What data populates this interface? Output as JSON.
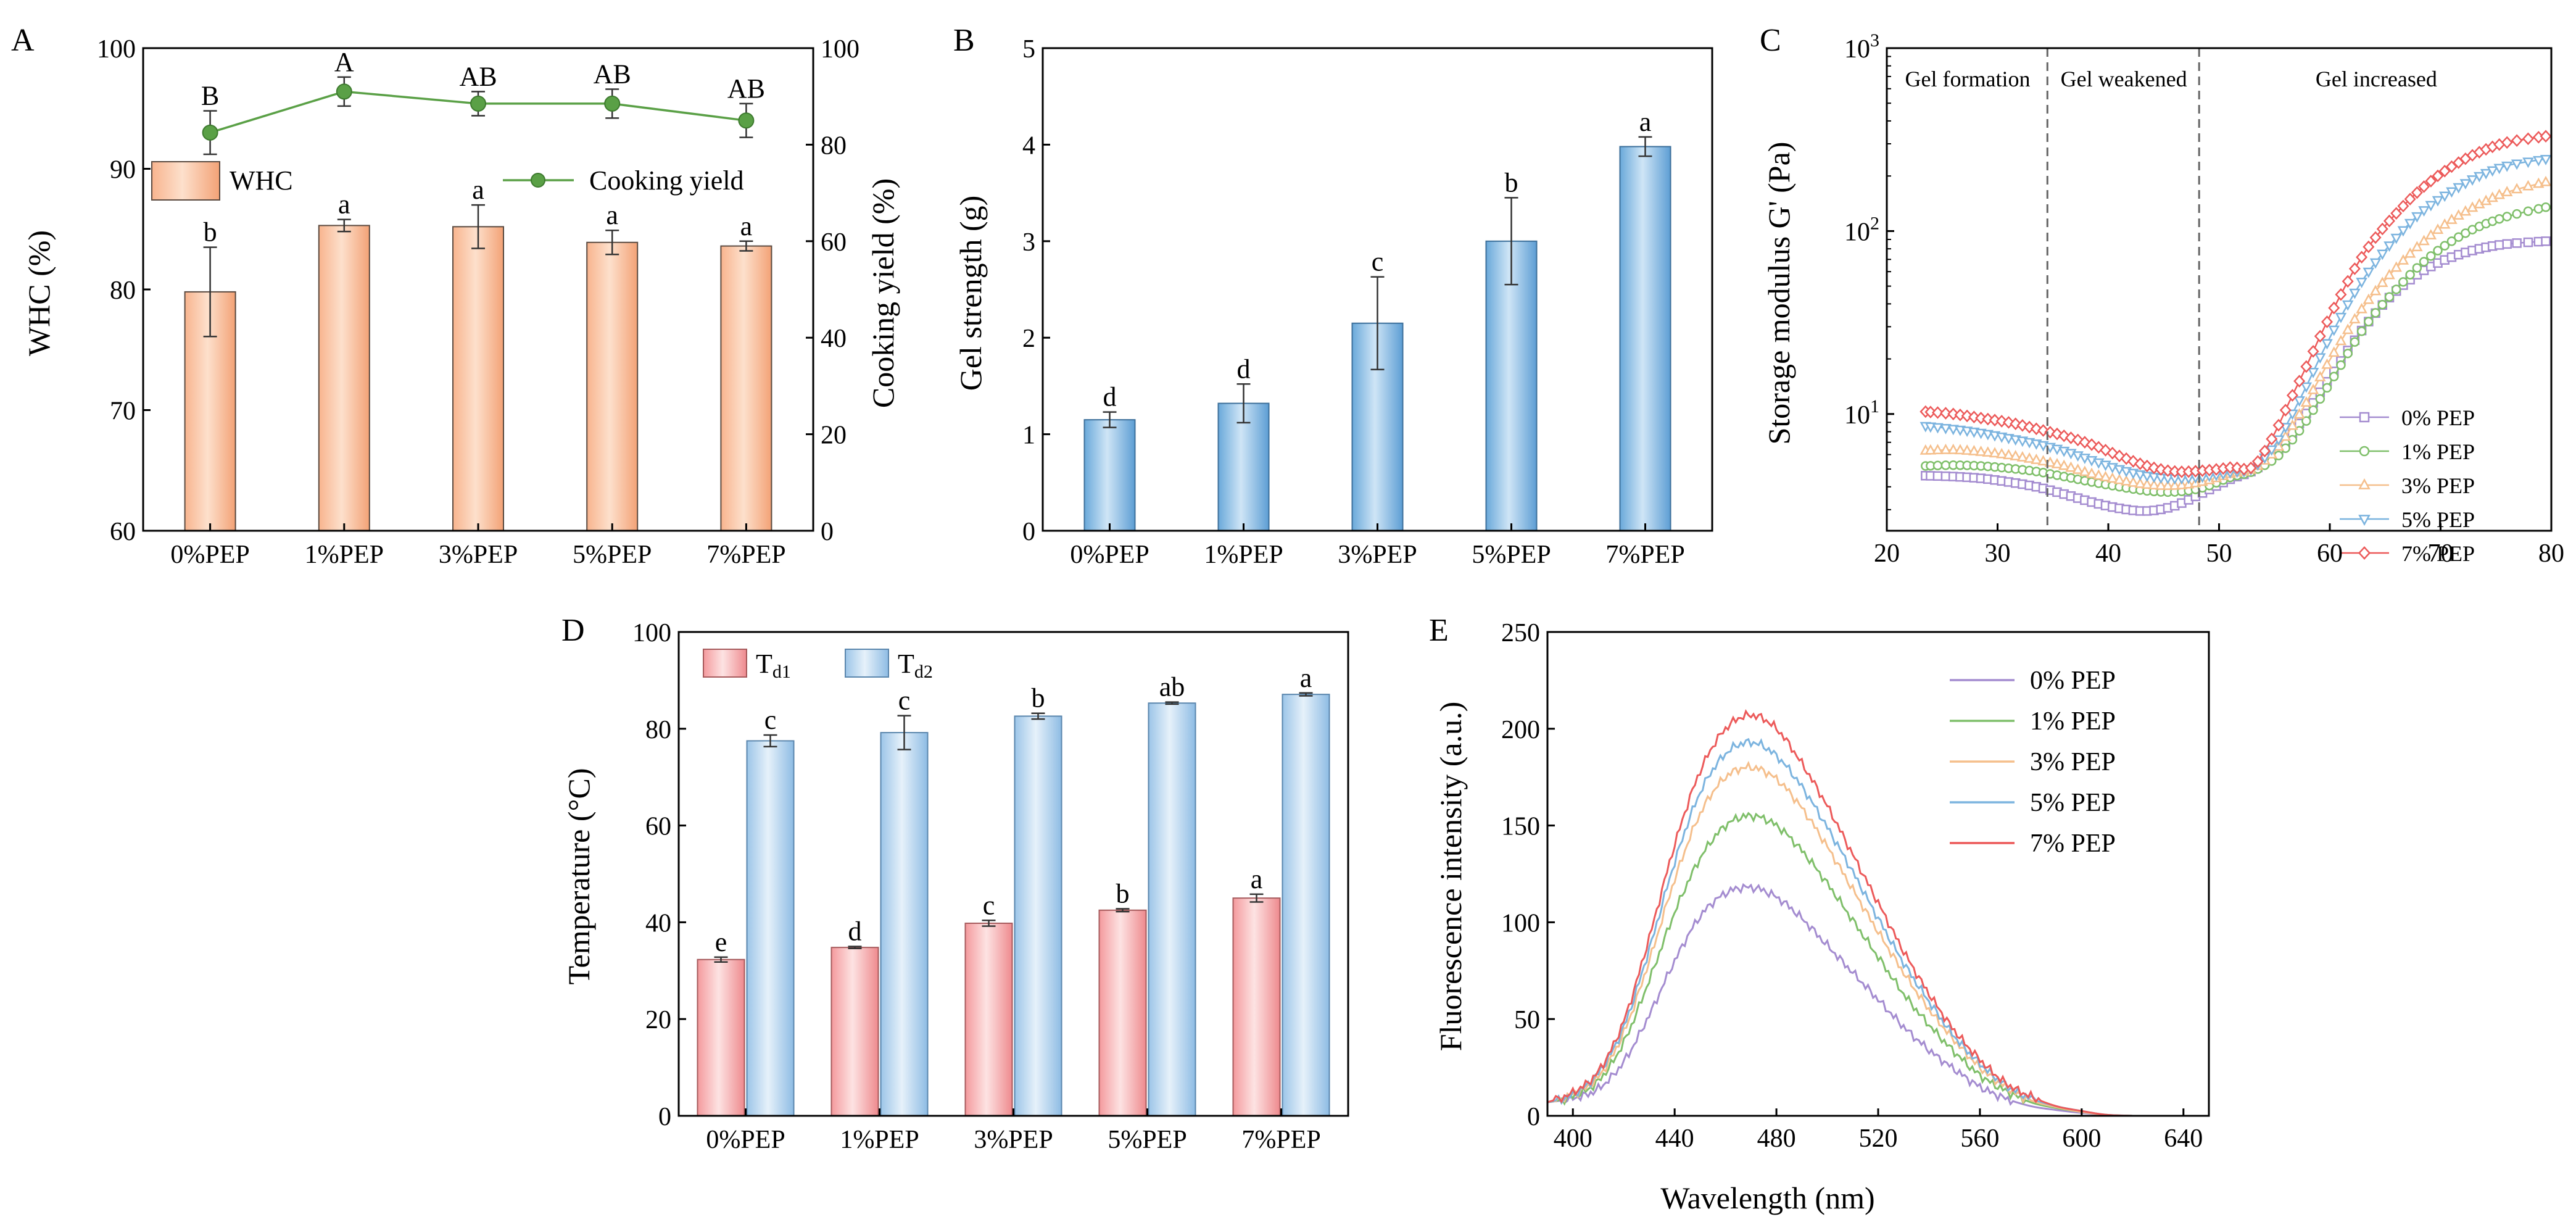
{
  "colors": {
    "whc_bar": "#f8b48e",
    "whc_stroke": "#5a4a40",
    "cook_line": "#5aa046",
    "gel_bar": "#7fb5e0",
    "td1_bar": "#f4a4a6",
    "td2_bar": "#a9cceb",
    "pep0": "#a48cd0",
    "pep1": "#7fbf6a",
    "pep3": "#f5bf8c",
    "pep5": "#7cb4df",
    "pep7": "#ec5a5a"
  },
  "panels": {
    "A": {
      "letter": "A"
    },
    "B": {
      "letter": "B"
    },
    "C": {
      "letter": "C"
    },
    "D": {
      "letter": "D"
    },
    "E": {
      "letter": "E"
    }
  },
  "chart_data": [
    {
      "id": "A",
      "type": "bar",
      "categories": [
        "0%PEP",
        "1%PEP",
        "3%PEP",
        "5%PEP",
        "7%PEP"
      ],
      "ylabel": "WHC (%)",
      "ylim": [
        60,
        100
      ],
      "yticks": [
        60,
        70,
        80,
        90,
        100
      ],
      "y2label": "Cooking yield (%)",
      "y2lim": [
        0,
        100
      ],
      "y2ticks": [
        0,
        20,
        40,
        60,
        80,
        100
      ],
      "legend": {
        "position": "top-inside",
        "bar_label": "WHC",
        "line_label": "Cooking yield"
      },
      "series": [
        {
          "name": "WHC",
          "kind": "bar",
          "axis": "left",
          "values": [
            79.8,
            85.3,
            85.2,
            83.9,
            83.6
          ],
          "errors": [
            3.7,
            0.5,
            1.8,
            1.0,
            0.4
          ],
          "letters": [
            "b",
            "a",
            "a",
            "a",
            "a"
          ]
        },
        {
          "name": "Cooking yield",
          "kind": "line",
          "axis": "right",
          "values": [
            82.5,
            91.0,
            88.5,
            88.5,
            85.0
          ],
          "errors": [
            4.5,
            3.0,
            2.5,
            3.0,
            3.5
          ],
          "letters": [
            "B",
            "A",
            "AB",
            "AB",
            "AB"
          ]
        }
      ]
    },
    {
      "id": "B",
      "type": "bar",
      "categories": [
        "0%PEP",
        "1%PEP",
        "3%PEP",
        "5%PEP",
        "7%PEP"
      ],
      "ylabel": "Gel strength (g)",
      "ylim": [
        0,
        5
      ],
      "yticks": [
        0,
        1,
        2,
        3,
        4,
        5
      ],
      "series": [
        {
          "name": "Gel strength",
          "values": [
            1.15,
            1.32,
            2.15,
            3.0,
            3.98
          ],
          "errors": [
            0.08,
            0.2,
            0.48,
            0.45,
            0.1
          ],
          "letters": [
            "d",
            "d",
            "c",
            "b",
            "a"
          ]
        }
      ]
    },
    {
      "id": "C",
      "type": "line",
      "ylabel": "Storage modulus G' (Pa)",
      "yscale": "log",
      "ylim": [
        2.3,
        1000
      ],
      "yticks": [
        {
          "value": 10,
          "base": "10",
          "exp": "1"
        },
        {
          "value": 100,
          "base": "10",
          "exp": "2"
        },
        {
          "value": 1000,
          "base": "10",
          "exp": "3"
        }
      ],
      "xlim": [
        20,
        80
      ],
      "xticks": [
        20,
        30,
        40,
        50,
        60,
        70,
        80
      ],
      "dividers": [
        34.5,
        48.2
      ],
      "regions": [
        {
          "label": "Gel formation",
          "x": 27.3
        },
        {
          "label": "Gel weakened",
          "x": 41.4
        },
        {
          "label": "Gel increased",
          "x": 64.2
        }
      ],
      "legend": {
        "position": "bottom-right"
      },
      "x": [
        23.5,
        26,
        28.5,
        31,
        33.5,
        36,
        38.5,
        41,
        43.5,
        46,
        48.5,
        51,
        53.5,
        56,
        58.5,
        61,
        63.5,
        66,
        68.5,
        71,
        73.5,
        76,
        79.5
      ],
      "series": [
        {
          "name": "0% PEP",
          "marker": "square",
          "values": [
            4.6,
            4.55,
            4.45,
            4.25,
            4.0,
            3.65,
            3.3,
            3.05,
            2.95,
            3.15,
            3.7,
            4.4,
            5.1,
            7.0,
            11.5,
            19.5,
            32,
            47,
            61,
            72,
            80,
            85,
            88
          ]
        },
        {
          "name": "1% PEP",
          "marker": "circle",
          "values": [
            5.2,
            5.25,
            5.2,
            5.05,
            4.85,
            4.55,
            4.25,
            4.0,
            3.8,
            3.75,
            3.95,
            4.5,
            5.0,
            6.5,
            10.5,
            18.5,
            32,
            48,
            68,
            88,
            106,
            120,
            135
          ]
        },
        {
          "name": "3% PEP",
          "marker": "triangle-up",
          "values": [
            6.3,
            6.35,
            6.2,
            5.95,
            5.6,
            5.2,
            4.7,
            4.35,
            4.1,
            4.05,
            4.25,
            4.7,
            5.2,
            7.5,
            13.5,
            25,
            42,
            63,
            88,
            115,
            140,
            163,
            185
          ]
        },
        {
          "name": "5% PEP",
          "marker": "triangle-down",
          "values": [
            8.6,
            8.3,
            7.9,
            7.4,
            6.9,
            6.3,
            5.6,
            5.0,
            4.6,
            4.45,
            4.55,
            4.8,
            5.3,
            8.5,
            17,
            34,
            60,
            92,
            130,
            165,
            200,
            228,
            248
          ]
        },
        {
          "name": "7% PEP",
          "marker": "diamond",
          "values": [
            10.3,
            10.0,
            9.5,
            9.0,
            8.3,
            7.6,
            6.8,
            5.9,
            5.2,
            4.85,
            4.9,
            5.1,
            5.5,
            10.5,
            22,
            45,
            82,
            125,
            175,
            225,
            270,
            305,
            330
          ]
        }
      ]
    },
    {
      "id": "D",
      "type": "bar",
      "categories": [
        "0%PEP",
        "1%PEP",
        "3%PEP",
        "5%PEP",
        "7%PEP"
      ],
      "ylabel": "Temperature (°C)",
      "ylim": [
        0,
        100
      ],
      "yticks": [
        0,
        20,
        40,
        60,
        80,
        100
      ],
      "legend": {
        "position": "top-left"
      },
      "series": [
        {
          "name": "T",
          "sub": "d1",
          "values": [
            32.3,
            34.8,
            39.8,
            42.5,
            45.0
          ],
          "errors": [
            0.5,
            0.2,
            0.6,
            0.3,
            0.8
          ],
          "letters": [
            "e",
            "d",
            "c",
            "b",
            "a"
          ]
        },
        {
          "name": "T",
          "sub": "d2",
          "values": [
            77.5,
            79.2,
            82.6,
            85.3,
            87.1
          ],
          "errors": [
            1.2,
            3.5,
            0.6,
            0.2,
            0.3
          ],
          "letters": [
            "c",
            "c",
            "b",
            "ab",
            "a"
          ]
        }
      ]
    },
    {
      "id": "E",
      "type": "line",
      "xlabel": "Wavelength (nm)",
      "ylabel": "Fluorescence intensity (a.u.)",
      "xlim": [
        390,
        650
      ],
      "xticks": [
        400,
        440,
        480,
        520,
        560,
        600,
        640
      ],
      "ylim": [
        0,
        250
      ],
      "yticks": [
        0,
        50,
        100,
        150,
        200,
        250
      ],
      "legend": {
        "position": "top-right"
      },
      "x": [
        390,
        400,
        410,
        420,
        430,
        440,
        450,
        460,
        470,
        480,
        490,
        500,
        510,
        520,
        530,
        540,
        550,
        560,
        570,
        580,
        590,
        600,
        610,
        620
      ],
      "series": [
        {
          "name": "0% PEP",
          "values": [
            7,
            9,
            14,
            28,
            52,
            80,
            103,
            115,
            118,
            113,
            102,
            88,
            74,
            60,
            46,
            34,
            24,
            15,
            9,
            5,
            3,
            1.5,
            0.5,
            0
          ]
        },
        {
          "name": "1% PEP",
          "values": [
            7,
            10,
            18,
            38,
            70,
            105,
            133,
            150,
            155,
            150,
            137,
            120,
            101,
            82,
            63,
            47,
            33,
            21,
            13,
            7,
            4,
            2,
            0.5,
            0
          ]
        },
        {
          "name": "3% PEP",
          "values": [
            7,
            11,
            20,
            43,
            80,
            122,
            156,
            175,
            180,
            174,
            159,
            139,
            117,
            95,
            74,
            55,
            39,
            25,
            15,
            8,
            4.5,
            2,
            0.5,
            0
          ]
        },
        {
          "name": "5% PEP",
          "values": [
            7,
            11,
            22,
            46,
            86,
            131,
            167,
            187,
            193,
            186,
            170,
            149,
            126,
            102,
            79,
            59,
            41,
            27,
            16,
            9,
            5,
            2.5,
            0.5,
            0
          ]
        },
        {
          "name": "7% PEP",
          "values": [
            7,
            12,
            23,
            49,
            92,
            140,
            178,
            200,
            207,
            200,
            182,
            160,
            135,
            110,
            85,
            63,
            44,
            29,
            17,
            10,
            5,
            2.5,
            0.5,
            0
          ]
        }
      ]
    }
  ]
}
